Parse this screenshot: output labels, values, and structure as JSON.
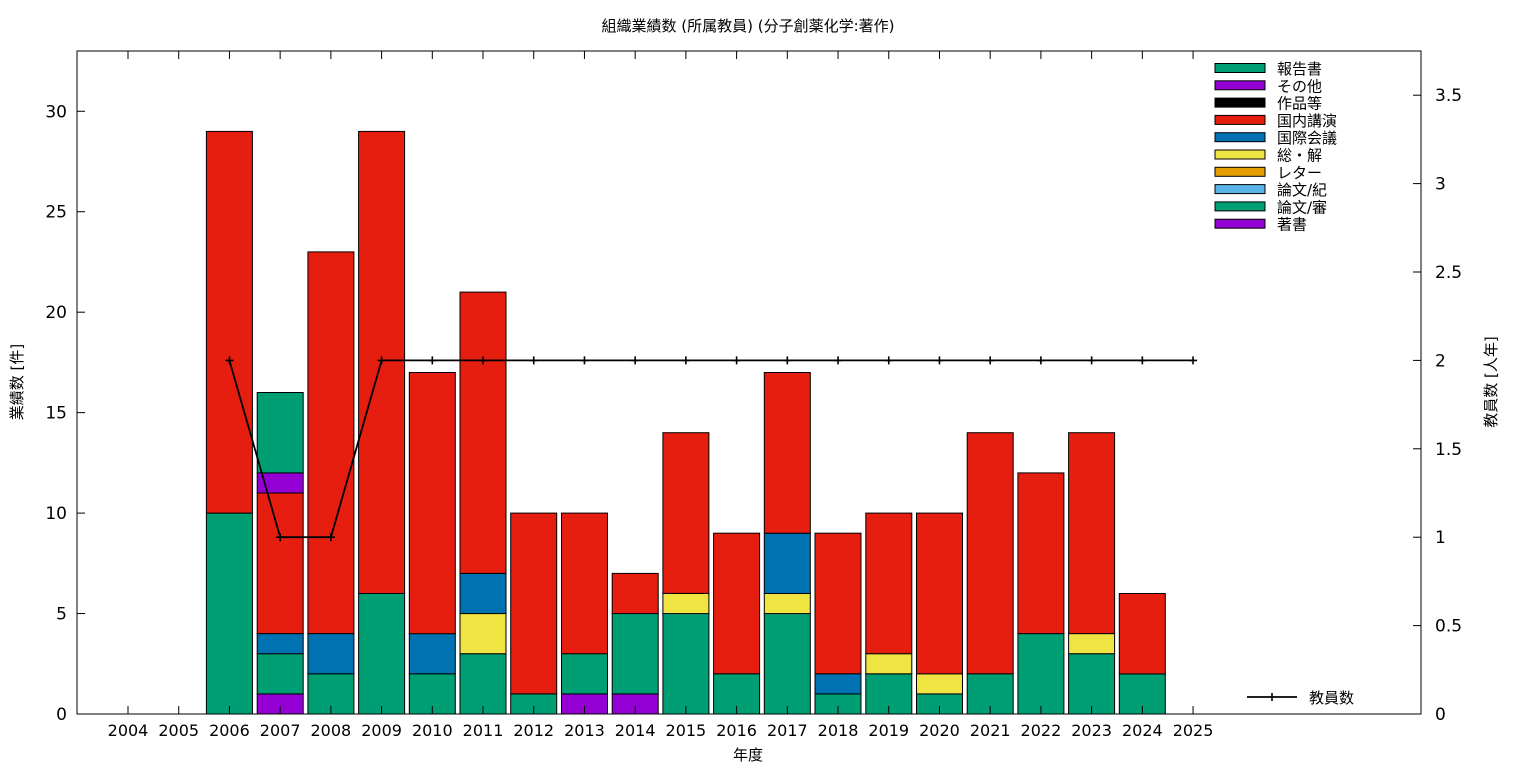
{
  "chart_data": {
    "type": "bar",
    "stacked": true,
    "title": "組織業績数 (所属教員) (分子創薬化学:著作)",
    "xlabel": "年度",
    "ylabel": "業績数 [件]",
    "y2label": "教員数 [人年]",
    "categories": [
      "2004",
      "2005",
      "2006",
      "2007",
      "2008",
      "2009",
      "2010",
      "2011",
      "2012",
      "2013",
      "2014",
      "2015",
      "2016",
      "2017",
      "2018",
      "2019",
      "2020",
      "2021",
      "2022",
      "2023",
      "2024",
      "2025"
    ],
    "ylim": [
      0,
      33
    ],
    "y2lim": [
      0,
      3.75
    ],
    "yticks": [
      0,
      5,
      10,
      15,
      20,
      25,
      30
    ],
    "y2ticks": [
      0,
      0.5,
      1,
      1.5,
      2,
      2.5,
      3,
      3.5
    ],
    "grid": false,
    "legend_position": "top-right",
    "series": [
      {
        "name": "著書",
        "color": "#9400d3",
        "values": [
          0,
          0,
          0,
          1,
          0,
          0,
          0,
          0,
          0,
          1,
          1,
          0,
          0,
          0,
          0,
          0,
          0,
          0,
          0,
          0,
          0,
          0
        ]
      },
      {
        "name": "論文/審",
        "color": "#009e73",
        "values": [
          0,
          0,
          10,
          2,
          2,
          6,
          2,
          3,
          1,
          2,
          4,
          5,
          2,
          5,
          1,
          2,
          1,
          2,
          4,
          3,
          2,
          0
        ]
      },
      {
        "name": "論文/紀",
        "color": "#56b4e9",
        "values": [
          0,
          0,
          0,
          0,
          0,
          0,
          0,
          0,
          0,
          0,
          0,
          0,
          0,
          0,
          0,
          0,
          0,
          0,
          0,
          0,
          0,
          0
        ]
      },
      {
        "name": "レター",
        "color": "#e69f00",
        "values": [
          0,
          0,
          0,
          0,
          0,
          0,
          0,
          0,
          0,
          0,
          0,
          0,
          0,
          0,
          0,
          0,
          0,
          0,
          0,
          0,
          0,
          0
        ]
      },
      {
        "name": "総・解",
        "color": "#f0e442",
        "values": [
          0,
          0,
          0,
          0,
          0,
          0,
          0,
          2,
          0,
          0,
          0,
          1,
          0,
          1,
          0,
          1,
          1,
          0,
          0,
          1,
          0,
          0
        ]
      },
      {
        "name": "国際会議",
        "color": "#0072b2",
        "values": [
          0,
          0,
          0,
          1,
          2,
          0,
          2,
          2,
          0,
          0,
          0,
          0,
          0,
          3,
          1,
          0,
          0,
          0,
          0,
          0,
          0,
          0
        ]
      },
      {
        "name": "国内講演",
        "color": "#e51e10",
        "values": [
          0,
          0,
          19,
          7,
          19,
          23,
          13,
          14,
          9,
          7,
          2,
          8,
          7,
          8,
          7,
          7,
          8,
          12,
          8,
          10,
          4,
          0
        ]
      },
      {
        "name": "作品等",
        "color": "#000000",
        "values": [
          0,
          0,
          0,
          0,
          0,
          0,
          0,
          0,
          0,
          0,
          0,
          0,
          0,
          0,
          0,
          0,
          0,
          0,
          0,
          0,
          0,
          0
        ]
      },
      {
        "name": "その他",
        "color": "#9400d3",
        "values": [
          0,
          0,
          0,
          1,
          0,
          0,
          0,
          0,
          0,
          0,
          0,
          0,
          0,
          0,
          0,
          0,
          0,
          0,
          0,
          0,
          0,
          0
        ]
      },
      {
        "name": "報告書",
        "color": "#009e73",
        "values": [
          0,
          0,
          0,
          4,
          0,
          0,
          0,
          0,
          0,
          0,
          0,
          0,
          0,
          0,
          0,
          0,
          0,
          0,
          0,
          0,
          0,
          0
        ]
      }
    ],
    "line_series": {
      "name": "教員数",
      "color": "#000000",
      "axis": "y2",
      "x": [
        "2006",
        "2007",
        "2008",
        "2009",
        "2010",
        "2011",
        "2012",
        "2013",
        "2014",
        "2015",
        "2016",
        "2017",
        "2018",
        "2019",
        "2020",
        "2021",
        "2022",
        "2023",
        "2024",
        "2025"
      ],
      "values": [
        2,
        1,
        1,
        2,
        2,
        2,
        2,
        2,
        2,
        2,
        2,
        2,
        2,
        2,
        2,
        2,
        2,
        2,
        2,
        2
      ]
    }
  }
}
